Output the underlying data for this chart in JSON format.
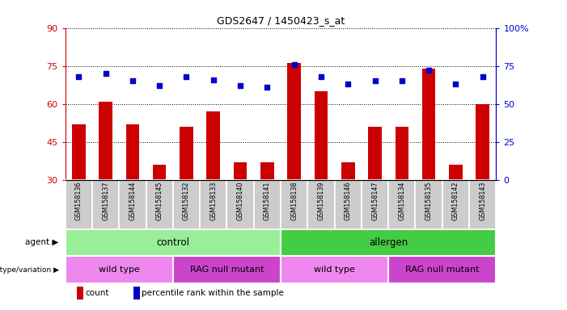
{
  "title": "GDS2647 / 1450423_s_at",
  "samples": [
    "GSM158136",
    "GSM158137",
    "GSM158144",
    "GSM158145",
    "GSM158132",
    "GSM158133",
    "GSM158140",
    "GSM158141",
    "GSM158138",
    "GSM158139",
    "GSM158146",
    "GSM158147",
    "GSM158134",
    "GSM158135",
    "GSM158142",
    "GSM158143"
  ],
  "counts": [
    52,
    61,
    52,
    36,
    51,
    57,
    37,
    37,
    76,
    65,
    37,
    51,
    51,
    74,
    36,
    60
  ],
  "percentiles": [
    68,
    70,
    65,
    62,
    68,
    66,
    62,
    61,
    76,
    68,
    63,
    65,
    65,
    72,
    63,
    68
  ],
  "ylim_left": [
    30,
    90
  ],
  "ylim_right": [
    0,
    100
  ],
  "yticks_left": [
    30,
    45,
    60,
    75,
    90
  ],
  "yticks_right": [
    0,
    25,
    50,
    75,
    100
  ],
  "bar_color": "#cc0000",
  "dot_color": "#0000cc",
  "agent_groups": [
    {
      "label": "control",
      "start": 0,
      "end": 8,
      "color": "#99ee99"
    },
    {
      "label": "allergen",
      "start": 8,
      "end": 16,
      "color": "#44cc44"
    }
  ],
  "genotype_groups": [
    {
      "label": "wild type",
      "start": 0,
      "end": 4,
      "color": "#ee88ee"
    },
    {
      "label": "RAG null mutant",
      "start": 4,
      "end": 8,
      "color": "#cc44cc"
    },
    {
      "label": "wild type",
      "start": 8,
      "end": 12,
      "color": "#ee88ee"
    },
    {
      "label": "RAG null mutant",
      "start": 12,
      "end": 16,
      "color": "#cc44cc"
    }
  ],
  "legend_count_label": "count",
  "legend_pct_label": "percentile rank within the sample",
  "agent_label": "agent",
  "genotype_label": "genotype/variation",
  "left_axis_color": "#cc0000",
  "right_axis_color": "#0000cc",
  "sample_box_color": "#cccccc",
  "n_samples": 16
}
